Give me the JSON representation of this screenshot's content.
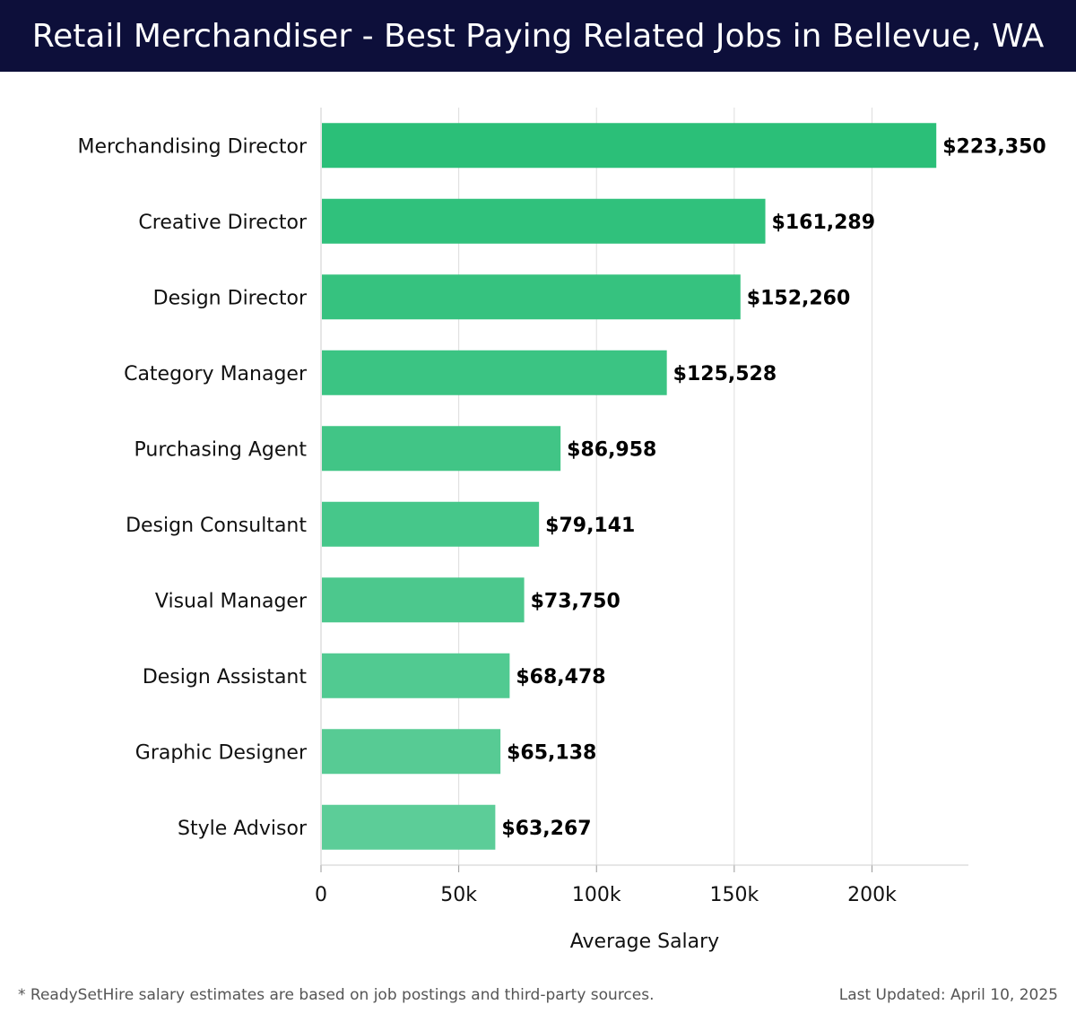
{
  "header": {
    "title": "Retail Merchandiser - Best Paying Related Jobs in Bellevue, WA"
  },
  "chart_data": {
    "type": "bar",
    "orientation": "horizontal",
    "categories": [
      "Merchandising Director",
      "Creative Director",
      "Design Director",
      "Category Manager",
      "Purchasing Agent",
      "Design Consultant",
      "Visual Manager",
      "Design Assistant",
      "Graphic Designer",
      "Style Advisor"
    ],
    "values": [
      223350,
      161289,
      152260,
      125528,
      86958,
      79141,
      73750,
      68478,
      65138,
      63267
    ],
    "value_labels": [
      "$223,350",
      "$161,289",
      "$152,260",
      "$125,528",
      "$86,958",
      "$79,141",
      "$73,750",
      "$68,478",
      "$65,138",
      "$63,267"
    ],
    "xlabel": "Average Salary",
    "ylabel": "",
    "xlim": [
      0,
      235000
    ],
    "xticks": [
      0,
      50000,
      100000,
      150000,
      200000
    ],
    "xtick_labels": [
      "0",
      "50k",
      "100k",
      "150k",
      "200k"
    ],
    "grid": true,
    "bar_color_top": "#2bbf78",
    "bar_color_bottom": "#5ccd98"
  },
  "footer": {
    "note": "* ReadySetHire salary estimates are based on job postings and third-party sources.",
    "updated": "Last Updated: April 10, 2025"
  },
  "colors": {
    "header_bg": "#0d0f3a",
    "gridline": "#dddddd",
    "text": "#111111"
  }
}
